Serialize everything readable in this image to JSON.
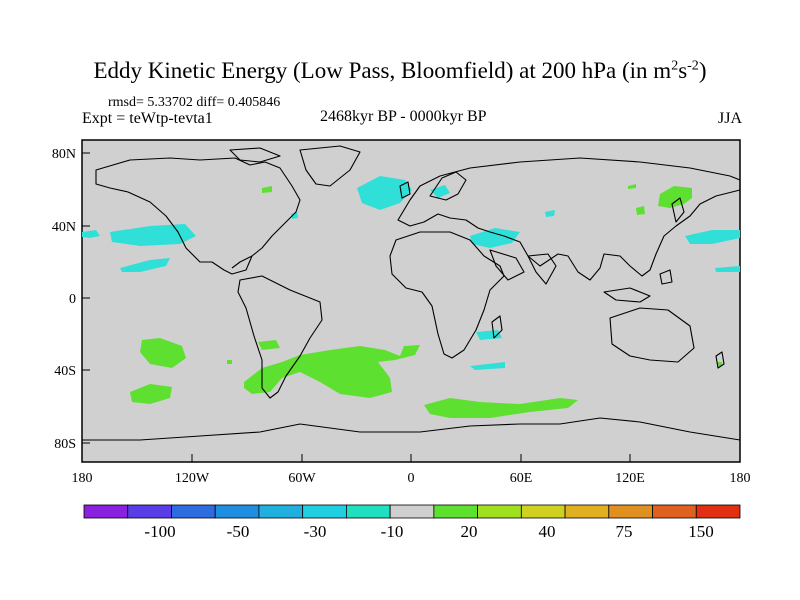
{
  "title": "Eddy Kinetic Energy (Low Pass, Bloomfield) at 200 hPa (in m",
  "title_unit_exp1": "2",
  "title_unit_mid": "s",
  "title_unit_exp2": "-2",
  "title_close": ")",
  "stats": "rmsd= 5.33702 diff= 0.405846",
  "expt": "Expt = teWtp-tevta1",
  "period": "2468kyr BP - 0000kyr BP",
  "season": "JJA",
  "lat_ticks": [
    "80N",
    "40N",
    "0",
    "40S",
    "80S"
  ],
  "lon_ticks": [
    "180",
    "120W",
    "60W",
    "0",
    "60E",
    "120E",
    "180"
  ],
  "colorbar": {
    "labels": [
      "-100",
      "-50",
      "-30",
      "-10",
      "20",
      "40",
      "75",
      "150"
    ],
    "colors": [
      "#8a20e0",
      "#5a3ce8",
      "#2f6be0",
      "#1e8fe0",
      "#20b0e0",
      "#20d0e0",
      "#20e0c0",
      "#cfcfcf",
      "#5ee030",
      "#a0e020",
      "#d0d020",
      "#e0b020",
      "#e09020",
      "#e06020",
      "#e03010"
    ]
  },
  "map_colors": {
    "ocean": "#d0d0d0",
    "negative": "#30e0d8",
    "positive": "#5ee030"
  }
}
